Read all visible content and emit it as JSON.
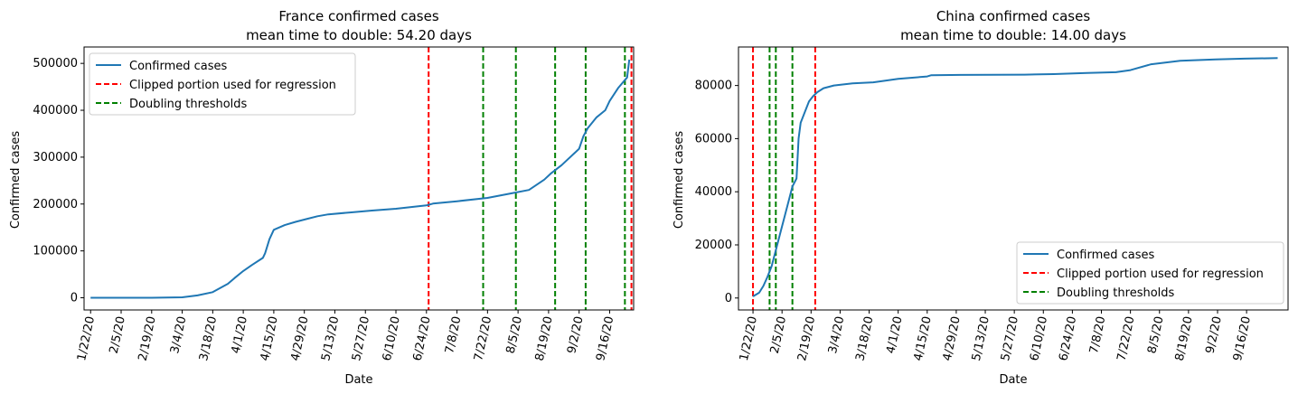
{
  "chart_data": [
    {
      "type": "line",
      "title": "France confirmed cases",
      "subtitle": "mean time to double: 54.20 days",
      "xlabel": "Date",
      "ylabel": "Confirmed cases",
      "x_tick_labels": [
        "1/22/20",
        "2/5/20",
        "2/19/20",
        "3/4/20",
        "3/18/20",
        "4/1/20",
        "4/15/20",
        "4/29/20",
        "5/13/20",
        "5/27/20",
        "6/10/20",
        "6/24/20",
        "7/8/20",
        "7/22/20",
        "8/5/20",
        "8/19/20",
        "9/2/20",
        "9/16/20"
      ],
      "y_ticks": [
        0,
        100000,
        200000,
        300000,
        400000,
        500000
      ],
      "y_tick_labels": [
        "0",
        "100000",
        "200000",
        "300000",
        "400000",
        "500000"
      ],
      "xlim": [
        "1/19/20",
        "9/27/20"
      ],
      "ylim": [
        -26000,
        535000
      ],
      "legend_position": "upper-left",
      "series": [
        {
          "name": "Confirmed cases",
          "color": "#1f77b4",
          "x": [
            "1/22/20",
            "2/5/20",
            "2/19/20",
            "3/4/20",
            "3/11/20",
            "3/18/20",
            "3/25/20",
            "3/28/20",
            "4/1/20",
            "4/5/20",
            "4/10/20",
            "4/11/20",
            "4/13/20",
            "4/15/20",
            "4/20/20",
            "4/25/20",
            "4/30/20",
            "5/5/20",
            "5/10/20",
            "5/20/20",
            "5/30/20",
            "6/10/20",
            "6/24/20",
            "6/27/20",
            "7/8/20",
            "7/22/20",
            "8/1/20",
            "8/10/20",
            "8/17/20",
            "8/20/20",
            "8/25/20",
            "9/2/20",
            "9/4/20",
            "9/6/20",
            "9/10/20",
            "9/14/20",
            "9/16/20",
            "9/20/20",
            "9/24/20",
            "9/25/20"
          ],
          "values": [
            0,
            0,
            0,
            1000,
            5000,
            12000,
            30000,
            42000,
            57000,
            70000,
            85000,
            95000,
            125000,
            145000,
            155000,
            162000,
            168000,
            174000,
            178000,
            182000,
            186000,
            190000,
            197000,
            201000,
            206000,
            213000,
            222000,
            230000,
            252000,
            265000,
            283000,
            318000,
            345000,
            362000,
            385000,
            400000,
            420000,
            448000,
            470000,
            508000
          ]
        },
        {
          "name": "Clipped portion used for regression",
          "color": "#ff0000",
          "style": "dashed",
          "x": [
            "6/25/20",
            "9/26/20"
          ]
        },
        {
          "name": "Doubling thresholds",
          "color": "#008000",
          "style": "dashed",
          "x": [
            "7/20/20",
            "8/4/20",
            "8/22/20",
            "9/5/20",
            "9/23/20"
          ]
        }
      ]
    },
    {
      "type": "line",
      "title": "China confirmed cases",
      "subtitle": "mean time to double: 14.00 days",
      "xlabel": "Date",
      "ylabel": "Confirmed cases",
      "x_tick_labels": [
        "1/22/20",
        "2/5/20",
        "2/19/20",
        "3/4/20",
        "3/18/20",
        "4/1/20",
        "4/15/20",
        "4/29/20",
        "5/13/20",
        "5/27/20",
        "6/10/20",
        "6/24/20",
        "7/8/20",
        "7/22/20",
        "8/5/20",
        "8/19/20",
        "9/2/20",
        "9/16/20"
      ],
      "y_ticks": [
        0,
        20000,
        40000,
        60000,
        80000
      ],
      "y_tick_labels": [
        "0",
        "20000",
        "40000",
        "60000",
        "80000"
      ],
      "xlim": [
        "1/15/20",
        "10/6/20"
      ],
      "ylim": [
        -4500,
        94500
      ],
      "legend_position": "lower-right",
      "series": [
        {
          "name": "Confirmed cases",
          "color": "#1f77b4",
          "x": [
            "1/22/20",
            "1/25/20",
            "1/27/20",
            "1/29/20",
            "1/31/20",
            "2/2/20",
            "2/4/20",
            "2/6/20",
            "2/8/20",
            "2/10/20",
            "2/12/20",
            "2/13/20",
            "2/14/20",
            "2/16/20",
            "2/18/20",
            "2/20/20",
            "2/22/20",
            "2/25/20",
            "3/1/20",
            "3/10/20",
            "3/20/20",
            "4/1/20",
            "4/15/20",
            "4/17/20",
            "5/1/20",
            "6/1/20",
            "6/15/20",
            "7/1/20",
            "7/15/20",
            "7/22/20",
            "8/1/20",
            "8/15/20",
            "9/1/20",
            "9/15/20",
            "10/1/20"
          ],
          "values": [
            600,
            2000,
            4500,
            8000,
            12000,
            18000,
            24000,
            30000,
            36000,
            42000,
            45000,
            60000,
            66000,
            70000,
            74000,
            76000,
            77500,
            79000,
            80000,
            80800,
            81200,
            82500,
            83400,
            83900,
            84000,
            84100,
            84300,
            84700,
            85000,
            85800,
            88000,
            89300,
            89800,
            90100,
            90300
          ]
        },
        {
          "name": "Clipped portion used for regression",
          "color": "#ff0000",
          "style": "dashed",
          "x": [
            "1/22/20",
            "2/21/20"
          ]
        },
        {
          "name": "Doubling thresholds",
          "color": "#008000",
          "style": "dashed",
          "x": [
            "1/30/20",
            "2/2/20",
            "2/10/20"
          ]
        }
      ]
    }
  ]
}
